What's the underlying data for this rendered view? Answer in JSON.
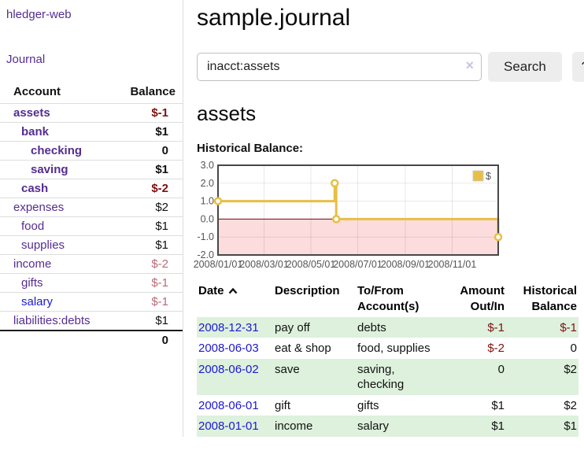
{
  "colors": {
    "purple": "#552d90",
    "blue": "#1d18d1",
    "neg-strong": "#7f1010",
    "neg-soft": "#b96a76",
    "row-green": "#ddf1dd",
    "btn-bg": "#ededed",
    "clear-x": "#cdc2e0"
  },
  "app": {
    "brand": "hledger-web",
    "nav_journal": "Journal"
  },
  "sidebar": {
    "header": {
      "account": "Account",
      "balance": "Balance"
    },
    "accounts": [
      {
        "name": "assets",
        "indent": 1,
        "bold": true,
        "balance": "$-1",
        "balance_style": "neg-strong"
      },
      {
        "name": "bank",
        "indent": 2,
        "bold": true,
        "balance": "$1",
        "balance_style": "plain"
      },
      {
        "name": "checking",
        "indent": 3,
        "bold": true,
        "balance": "0",
        "balance_style": "plain"
      },
      {
        "name": "saving",
        "indent": 3,
        "bold": true,
        "balance": "$1",
        "balance_style": "plain"
      },
      {
        "name": "cash",
        "indent": 2,
        "bold": true,
        "balance": "$-2",
        "balance_style": "neg-strong"
      },
      {
        "name": "expenses",
        "indent": 1,
        "bold": false,
        "balance": "$2",
        "balance_style": "plain"
      },
      {
        "name": "food",
        "indent": 2,
        "bold": false,
        "balance": "$1",
        "balance_style": "plain"
      },
      {
        "name": "supplies",
        "indent": 2,
        "bold": false,
        "balance": "$1",
        "balance_style": "plain"
      },
      {
        "name": "income",
        "indent": 1,
        "bold": false,
        "balance": "$-2",
        "balance_style": "neg-soft"
      },
      {
        "name": "gifts",
        "indent": 2,
        "bold": false,
        "balance": "$-1",
        "balance_style": "neg-soft"
      },
      {
        "name": "salary",
        "indent": 2,
        "bold": false,
        "link_style": "blue",
        "balance": "$-1",
        "balance_style": "neg-soft"
      },
      {
        "name": "liabilities:debts",
        "indent": 1,
        "bold": false,
        "balance": "$1",
        "balance_style": "plain"
      }
    ],
    "total": "0"
  },
  "main": {
    "title": "sample.journal",
    "search": {
      "value": "inacct:assets",
      "clear_icon": "×",
      "button": "Search",
      "help_button": "?"
    },
    "account_heading": "assets",
    "chart_label": "Historical Balance:"
  },
  "chart_data": {
    "type": "line",
    "step": true,
    "title": "Historical Balance",
    "xlabel": "",
    "ylabel": "",
    "grid": true,
    "legend_position": "top-right",
    "legend": [
      {
        "label": "$",
        "color": "#e6bf45"
      }
    ],
    "x_domain": [
      "2008-01-01",
      "2008-12-31"
    ],
    "x_ticks": [
      "2008/01/01",
      "2008/03/01",
      "2008/05/01",
      "2008/07/01",
      "2008/09/01",
      "2008/11/01"
    ],
    "ylim": [
      -2,
      3
    ],
    "y_ticks": [
      3.0,
      2.0,
      1.0,
      0.0,
      -1.0,
      -2.0
    ],
    "negative_region": true,
    "negative_color": "#fcdcdc",
    "zero_line_color": "#8b0000",
    "series": [
      {
        "name": "$",
        "color": "#e6bf45",
        "points": [
          [
            "2008-01-01",
            1
          ],
          [
            "2008-06-01",
            2
          ],
          [
            "2008-06-03",
            0
          ],
          [
            "2008-12-31",
            -1
          ]
        ]
      }
    ]
  },
  "register": {
    "headers": {
      "date": "Date",
      "description": "Description",
      "accounts": "To/From Account(s)",
      "amount": "Amount Out/In",
      "balance": "Historical Balance"
    },
    "rows": [
      {
        "date": "2008-12-31",
        "description": "pay off",
        "accounts": "debts",
        "amount": "$-1",
        "amount_neg": true,
        "balance": "$-1",
        "balance_neg": true
      },
      {
        "date": "2008-06-03",
        "description": "eat & shop",
        "accounts": "food, supplies",
        "amount": "$-2",
        "amount_neg": true,
        "balance": "0",
        "balance_neg": false
      },
      {
        "date": "2008-06-02",
        "description": "save",
        "accounts": "saving, checking",
        "amount": "0",
        "amount_neg": false,
        "balance": "$2",
        "balance_neg": false
      },
      {
        "date": "2008-06-01",
        "description": "gift",
        "accounts": "gifts",
        "amount": "$1",
        "amount_neg": false,
        "balance": "$2",
        "balance_neg": false
      },
      {
        "date": "2008-01-01",
        "description": "income",
        "accounts": "salary",
        "amount": "$1",
        "amount_neg": false,
        "balance": "$1",
        "balance_neg": false
      }
    ]
  }
}
